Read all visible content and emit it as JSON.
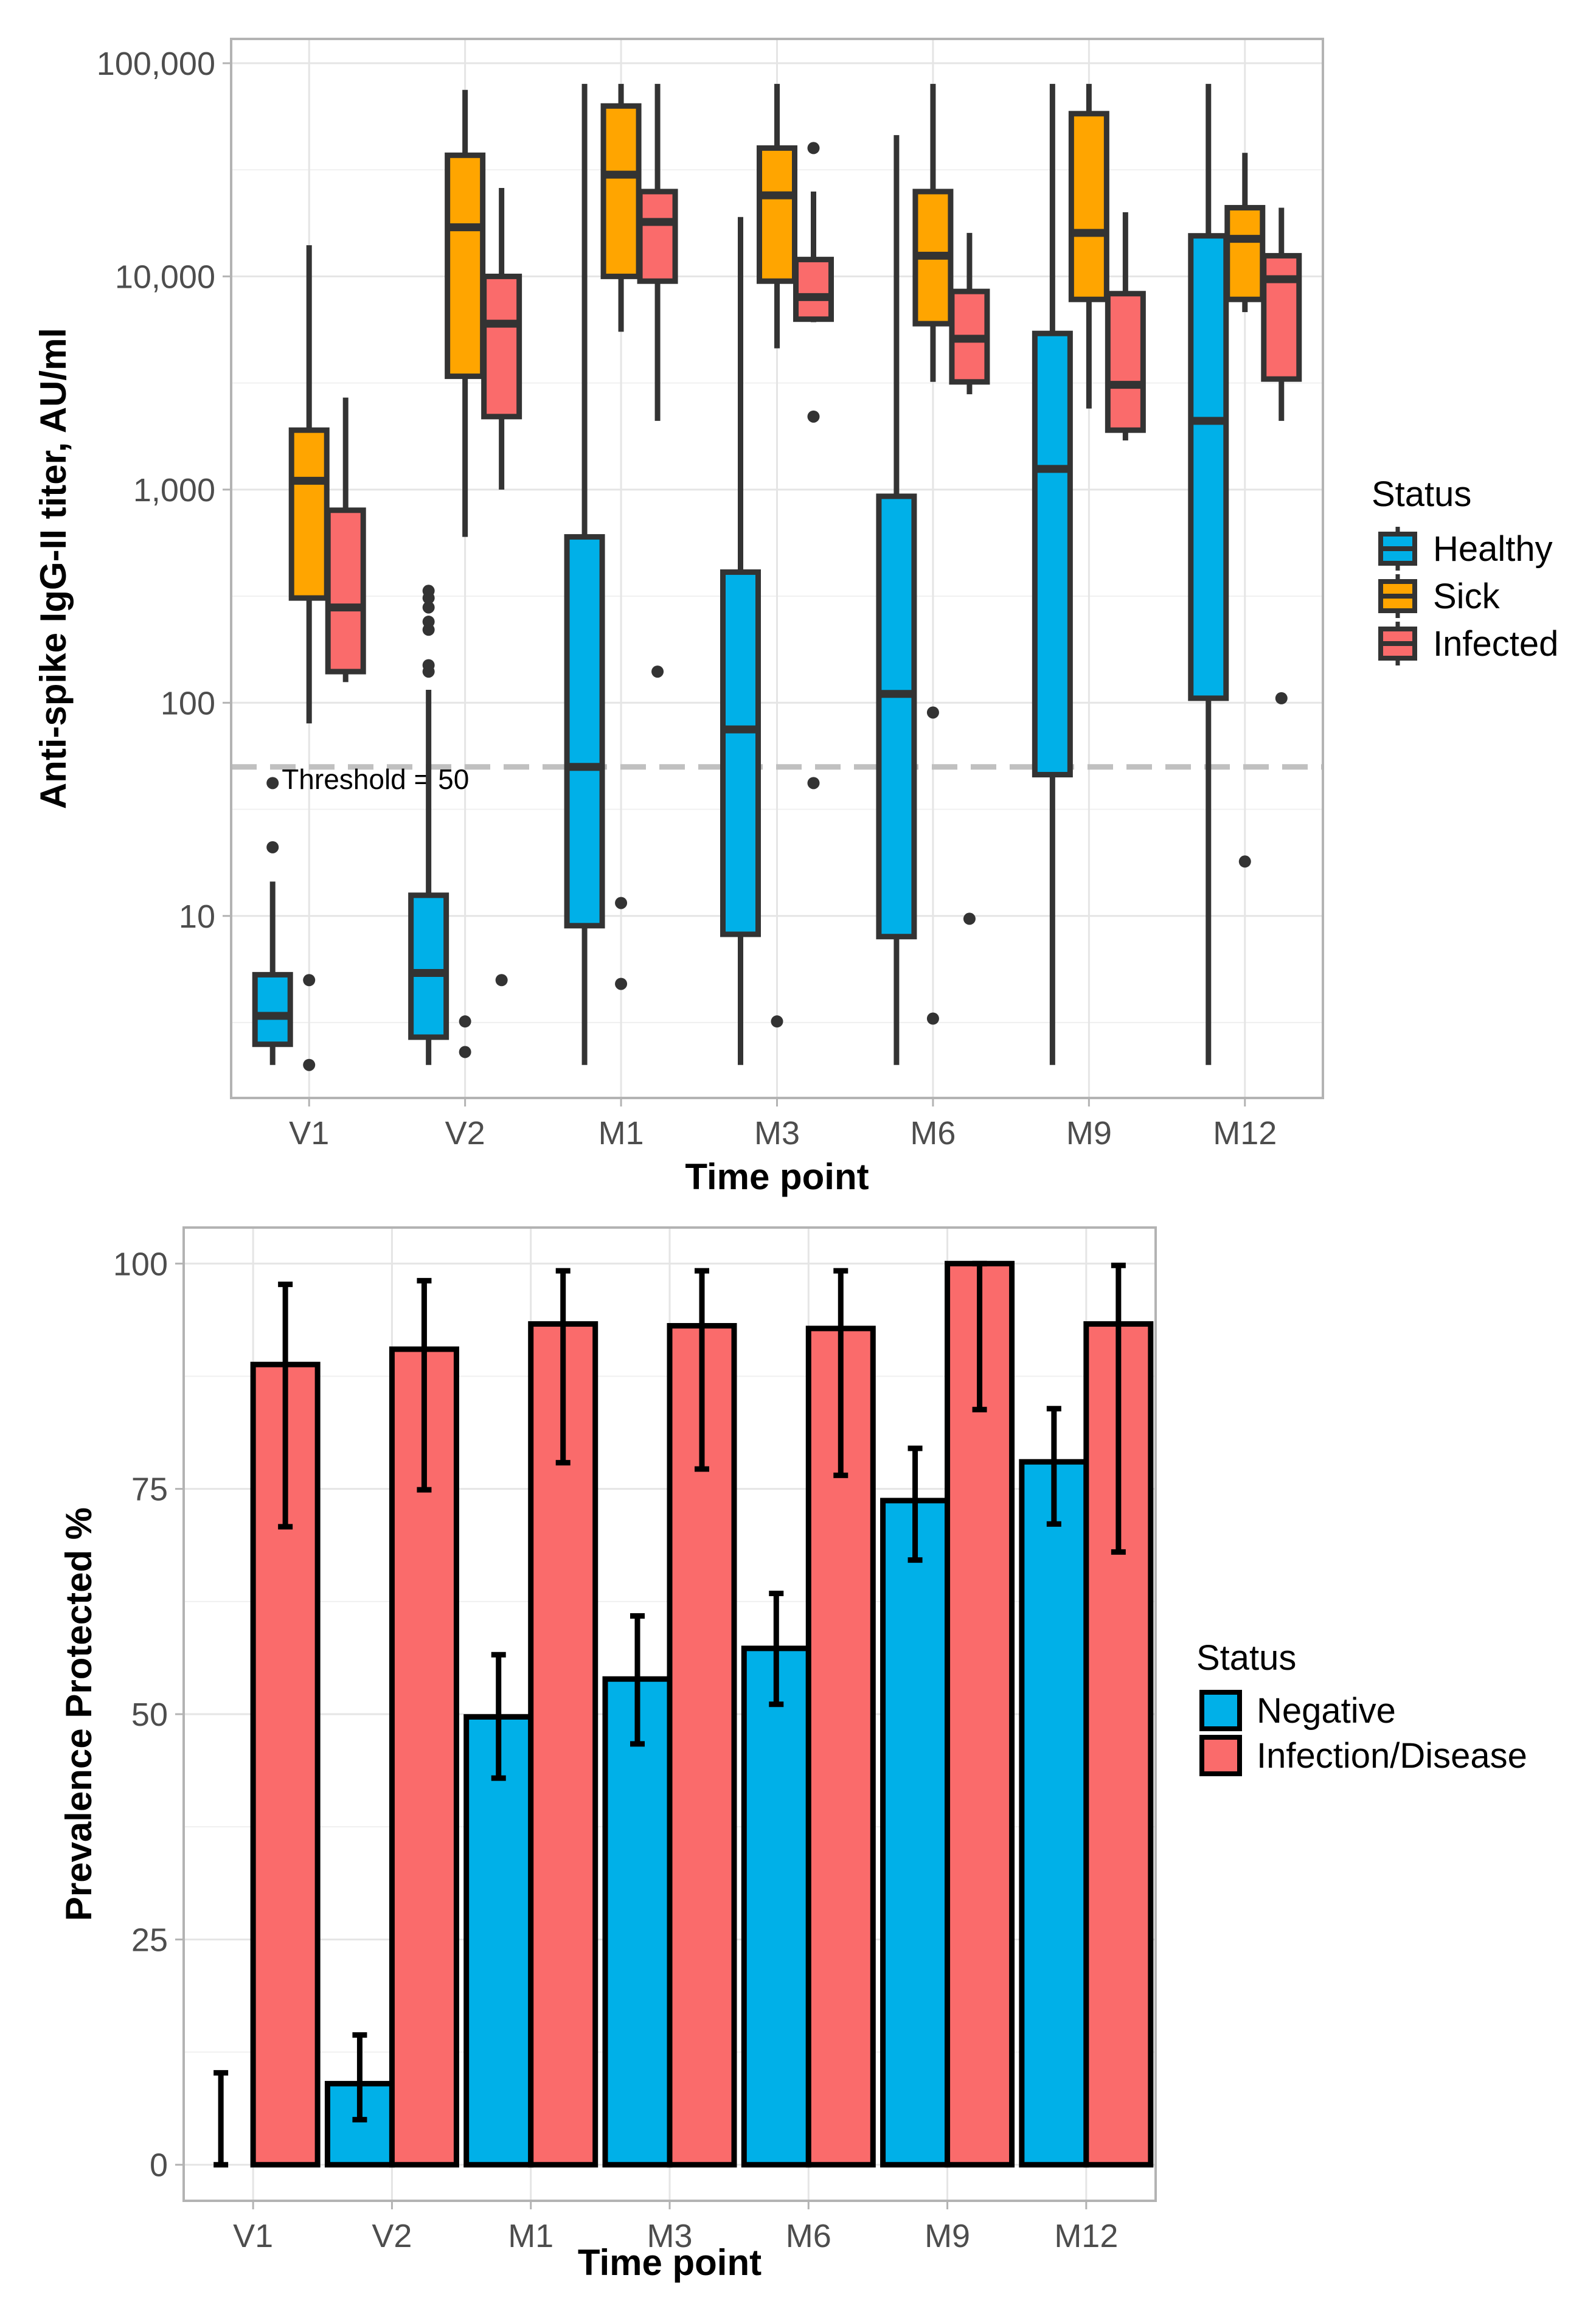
{
  "colors": {
    "healthy": "#00b0e8",
    "sick": "#ffa500",
    "infected": "#fa6b6b",
    "negative": "#00b0e8",
    "infection_disease": "#fa6b6b",
    "outline": "#1a1a1a",
    "grid": "#e5e5e5",
    "threshold": "#c0c0c0"
  },
  "chart_data": [
    {
      "type": "box",
      "title": "",
      "xlabel": "Time point",
      "ylabel": "Anti-spike IgG-II titer, AU/ml",
      "yscale": "log10",
      "ylim": [
        1.4,
        130000
      ],
      "yticks": [
        10,
        100,
        1000,
        10000,
        100000
      ],
      "ytick_labels": [
        "10",
        "100",
        "1,000",
        "10,000",
        "100,000"
      ],
      "categories": [
        "V1",
        "V2",
        "M1",
        "M3",
        "M6",
        "M9",
        "M12"
      ],
      "threshold": {
        "value": 50,
        "label": "Threshold = 50"
      },
      "legend": {
        "title": "Status",
        "placement": "right",
        "entries": [
          "Healthy",
          "Sick",
          "Infected"
        ]
      },
      "series": [
        {
          "name": "Healthy",
          "boxes": [
            {
              "whisker_low": 2,
              "q1": 2.5,
              "median": 3.4,
              "q3": 5.3,
              "whisker_high": 14.5,
              "outliers": [
                21,
                42
              ]
            },
            {
              "whisker_low": 2,
              "q1": 2.7,
              "median": 5.4,
              "q3": 12.5,
              "whisker_high": 115,
              "outliers": [
                140,
                150,
                220,
                240,
                280,
                310,
                335
              ]
            },
            {
              "whisker_low": 2,
              "q1": 9,
              "median": 50,
              "q3": 600,
              "whisker_high": 80000,
              "outliers": []
            },
            {
              "whisker_low": 2,
              "q1": 8.2,
              "median": 75,
              "q3": 410,
              "whisker_high": 19000,
              "outliers": []
            },
            {
              "whisker_low": 2,
              "q1": 8,
              "median": 110,
              "q3": 930,
              "whisker_high": 46000,
              "outliers": []
            },
            {
              "whisker_low": 2,
              "q1": 46,
              "median": 1250,
              "q3": 5400,
              "whisker_high": 80000,
              "outliers": []
            },
            {
              "whisker_low": 2,
              "q1": 105,
              "median": 2100,
              "q3": 15500,
              "whisker_high": 80000,
              "outliers": []
            }
          ]
        },
        {
          "name": "Sick",
          "boxes": [
            {
              "whisker_low": 80,
              "q1": 310,
              "median": 1100,
              "q3": 1900,
              "whisker_high": 14000,
              "outliers": [
                2,
                5
              ]
            },
            {
              "whisker_low": 600,
              "q1": 3400,
              "median": 17000,
              "q3": 37000,
              "whisker_high": 75000,
              "outliers": [
                2.3,
                3.2
              ]
            },
            {
              "whisker_low": 5500,
              "q1": 10000,
              "median": 30000,
              "q3": 63000,
              "whisker_high": 80000,
              "outliers": [
                4.8,
                11.5
              ]
            },
            {
              "whisker_low": 4600,
              "q1": 9500,
              "median": 24000,
              "q3": 40000,
              "whisker_high": 80000,
              "outliers": [
                3.2
              ]
            },
            {
              "whisker_low": 3200,
              "q1": 6000,
              "median": 12500,
              "q3": 25000,
              "whisker_high": 80000,
              "outliers": [
                3.3,
                90
              ]
            },
            {
              "whisker_low": 2400,
              "q1": 7800,
              "median": 16000,
              "q3": 58000,
              "whisker_high": 80000,
              "outliers": []
            },
            {
              "whisker_low": 6800,
              "q1": 7800,
              "median": 15000,
              "q3": 21000,
              "whisker_high": 38000,
              "outliers": [
                18
              ]
            }
          ]
        },
        {
          "name": "Infected",
          "boxes": [
            {
              "whisker_low": 125,
              "q1": 140,
              "median": 280,
              "q3": 800,
              "whisker_high": 2700,
              "outliers": []
            },
            {
              "whisker_low": 1000,
              "q1": 2200,
              "median": 6000,
              "q3": 10000,
              "whisker_high": 26000,
              "outliers": [
                5
              ]
            },
            {
              "whisker_low": 2100,
              "q1": 9500,
              "median": 18000,
              "q3": 25000,
              "whisker_high": 80000,
              "outliers": [
                140
              ]
            },
            {
              "whisker_low": 6100,
              "q1": 6300,
              "median": 8000,
              "q3": 12000,
              "whisker_high": 25000,
              "outliers": [
                40000,
                2200,
                42
              ]
            },
            {
              "whisker_low": 2800,
              "q1": 3200,
              "median": 5100,
              "q3": 8500,
              "whisker_high": 16000,
              "outliers": [
                9.7
              ]
            },
            {
              "whisker_low": 1700,
              "q1": 1900,
              "median": 3100,
              "q3": 8300,
              "whisker_high": 20000,
              "outliers": []
            },
            {
              "whisker_low": 2100,
              "q1": 3300,
              "median": 9700,
              "q3": 12500,
              "whisker_high": 21000,
              "outliers": [
                105
              ]
            }
          ]
        }
      ]
    },
    {
      "type": "bar",
      "title": "",
      "xlabel": "Time point",
      "ylabel": "Prevalence Protected %",
      "ylim": [
        -4,
        104
      ],
      "yticks": [
        0,
        25,
        50,
        75,
        100
      ],
      "categories": [
        "V1",
        "V2",
        "M1",
        "M3",
        "M6",
        "M9",
        "M12"
      ],
      "legend": {
        "title": "Status",
        "placement": "right",
        "entries": [
          "Negative",
          "Infection/Disease"
        ]
      },
      "series": [
        {
          "name": "Negative",
          "values": [
            0,
            9,
            49.7,
            53.9,
            57.3,
            73.7,
            78
          ],
          "err_low": [
            0,
            5,
            42.9,
            46.7,
            51.1,
            67.1,
            71.1
          ],
          "err_high": [
            10.2,
            14.4,
            56.6,
            60.9,
            63.4,
            79.5,
            83.9
          ]
        },
        {
          "name": "Infection/Disease",
          "values": [
            88.8,
            90.5,
            93.3,
            93.1,
            92.8,
            100,
            93.3
          ],
          "err_low": [
            70.8,
            74.9,
            77.9,
            77.2,
            76.5,
            83.8,
            68
          ],
          "err_high": [
            97.7,
            98.1,
            99.2,
            99.2,
            99.2,
            100,
            99.8
          ]
        }
      ]
    }
  ]
}
